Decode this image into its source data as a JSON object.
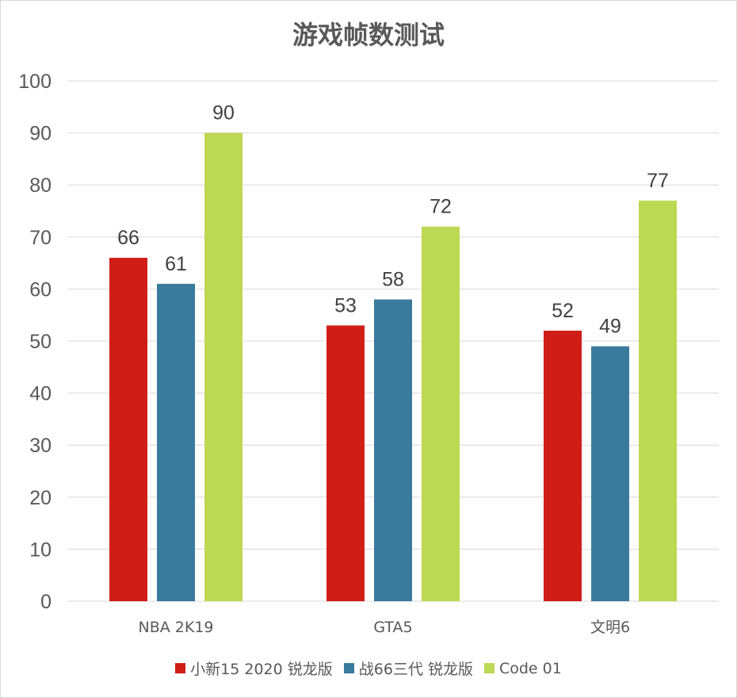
{
  "chart_data": {
    "type": "bar",
    "title": "游戏帧数测试",
    "categories": [
      "NBA 2K19",
      "GTA5",
      "文明6"
    ],
    "series": [
      {
        "name": "小新15 2020 锐龙版",
        "color": "#d01e17",
        "values": [
          66,
          53,
          52
        ]
      },
      {
        "name": "战66三代 锐龙版",
        "color": "#3a7a9c",
        "values": [
          61,
          58,
          49
        ]
      },
      {
        "name": "Code 01",
        "color": "#bdd852",
        "values": [
          90,
          72,
          77
        ]
      }
    ],
    "ylim": [
      0,
      100
    ],
    "yticks": [
      0,
      10,
      20,
      30,
      40,
      50,
      60,
      70,
      80,
      90,
      100
    ],
    "grid": true,
    "data_labels": true,
    "legend_position": "bottom"
  }
}
